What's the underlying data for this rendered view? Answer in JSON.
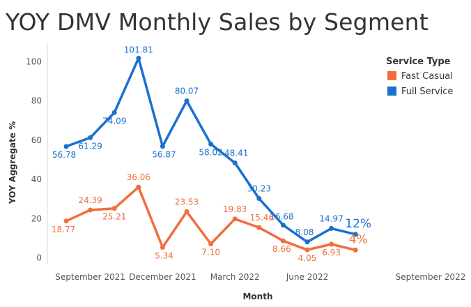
{
  "chart_data": {
    "type": "line",
    "title": "YOY DMV Monthly Sales by Segment",
    "xlabel": "Month",
    "ylabel": "YOY Aggregate %",
    "ylim": [
      -2,
      108
    ],
    "yticks": [
      0,
      20,
      40,
      60,
      80,
      100
    ],
    "xticks": [
      "September 2021",
      "December 2021",
      "March 2022",
      "June 2022",
      "September 2022"
    ],
    "x": [
      "Aug 2021",
      "Sep 2021",
      "Oct 2021",
      "Nov 2021",
      "Dec 2021",
      "Jan 2022",
      "Feb 2022",
      "Mar 2022",
      "Apr 2022",
      "May 2022",
      "Jun 2022",
      "Jul 2022",
      "Aug 2022",
      "Sep 2022"
    ],
    "legend_title": "Service Type",
    "legend_position": "top-right",
    "series": [
      {
        "name": "Fast Casual",
        "color": "#f26d3d",
        "values": [
          18.77,
          24.39,
          25.21,
          36.06,
          5.34,
          23.53,
          7.1,
          19.83,
          15.46,
          8.66,
          4.05,
          6.93,
          4.0,
          null
        ],
        "labels": [
          "18.77",
          "24.39",
          "25.21",
          "36.06",
          "5.34",
          "23.53",
          "7.10",
          "19.83",
          "15.46",
          "8.66",
          "4.05",
          "6.93",
          "4%",
          ""
        ]
      },
      {
        "name": "Full Service",
        "color": "#1a6fcf",
        "values": [
          56.78,
          61.29,
          74.09,
          101.81,
          56.87,
          80.07,
          58.02,
          48.41,
          30.23,
          16.68,
          8.08,
          14.97,
          12.0,
          null
        ],
        "labels": [
          "56.78",
          "61.29",
          "74.09",
          "101.81",
          "56.87",
          "80.07",
          "58.02",
          "48.41",
          "30.23",
          "16.68",
          "8.08",
          "14.97",
          "12%",
          ""
        ]
      }
    ]
  }
}
